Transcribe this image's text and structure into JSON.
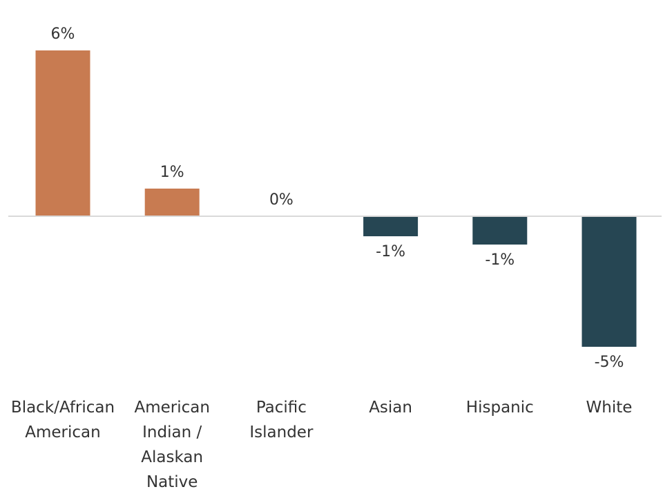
{
  "chart_data": {
    "type": "bar",
    "title": "",
    "xlabel": "",
    "ylabel": "",
    "categories": [
      [
        "Black/African",
        "American"
      ],
      [
        "American",
        "Indian /",
        "Alaskan",
        "Native"
      ],
      [
        "Pacific",
        "Islander"
      ],
      [
        "Asian"
      ],
      [
        "Hispanic"
      ],
      [
        "White"
      ]
    ],
    "values": [
      6.0,
      1.0,
      0.0,
      -0.7,
      -1.0,
      -4.7
    ],
    "value_labels": [
      "6%",
      "1%",
      "0%",
      "-1%",
      "-1%",
      "-5%"
    ],
    "ylim": [
      -5.5,
      6.8
    ],
    "grid": false,
    "legend": "none",
    "colors": {
      "positive": "#C87B51",
      "negative": "#264653",
      "axis": "#D9D9D9"
    }
  }
}
